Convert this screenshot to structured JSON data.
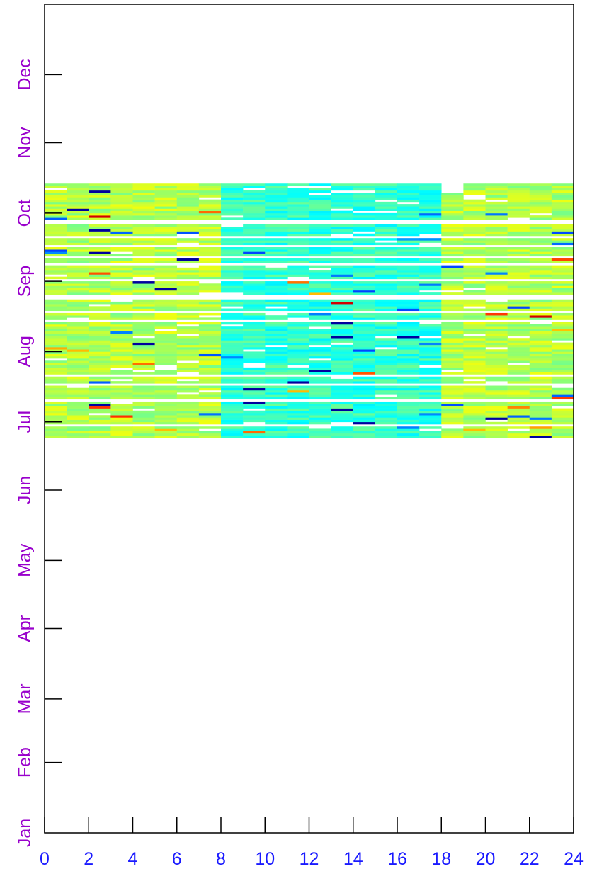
{
  "chart_data": {
    "type": "heatmap",
    "title": "",
    "xlabel": "",
    "ylabel": "",
    "xlim": [
      0,
      24
    ],
    "x_ticks": [
      0,
      2,
      4,
      6,
      8,
      10,
      12,
      14,
      16,
      18,
      20,
      22,
      24
    ],
    "x_tick_labels": [
      "0",
      "2",
      "4",
      "6",
      "8",
      "10",
      "12",
      "14",
      "16",
      "18",
      "20",
      "22",
      "24"
    ],
    "y_tick_labels": [
      "Jan",
      "Feb",
      "Mar",
      "Apr",
      "May",
      "Jun",
      "Jul",
      "Aug",
      "Sep",
      "Oct",
      "Nov",
      "Dec"
    ],
    "y_axis": "day of year (Jan 1 at bottom, Dec 31 at top)",
    "data_range_days": {
      "start": "Jun 24",
      "end": "Oct 13"
    },
    "x_bin_hours": 1,
    "colormap": "jet",
    "colors": {
      "x_tick_label": "#1a1aff",
      "y_tick_label": "#9900cc",
      "axis": "#000000"
    },
    "value_pattern": "daytime hours (about 8 to 18) mostly cyan (low values); night hours mostly yellow-green; occasional outlier cells in blue, dark navy, orange and dark red; some missing rows (white gaps)"
  }
}
